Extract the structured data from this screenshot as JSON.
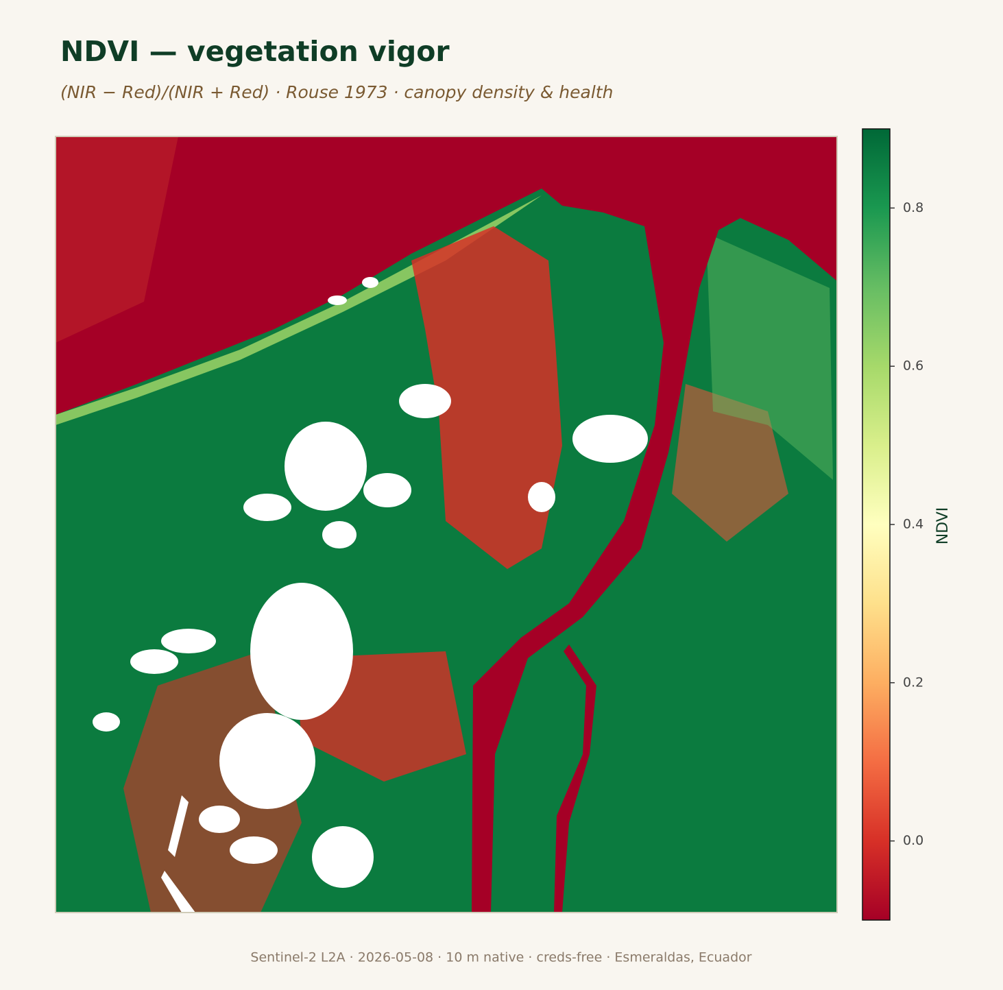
{
  "header": {
    "title": "NDVI — vegetation vigor",
    "subtitle": "(NIR − Red)/(NIR + Red) · Rouse 1973 · canopy density & health"
  },
  "colorbar": {
    "label": "NDVI",
    "lim": [
      -0.1,
      0.9
    ],
    "ticks": [
      {
        "value": 0,
        "label": "0.0"
      },
      0.2,
      0.4,
      0.6,
      0.8
    ],
    "colors": [
      "#a50026",
      "#d73027",
      "#f46d43",
      "#fdae61",
      "#fee08b",
      "#ffffbf",
      "#d9ef8b",
      "#a6d96a",
      "#66bd63",
      "#1a9850",
      "#006837"
    ]
  },
  "footer": "Sentinel-2 L2A · 2026-05-08 · 10 m native · creds-free · Esmeraldas, Ecuador"
}
